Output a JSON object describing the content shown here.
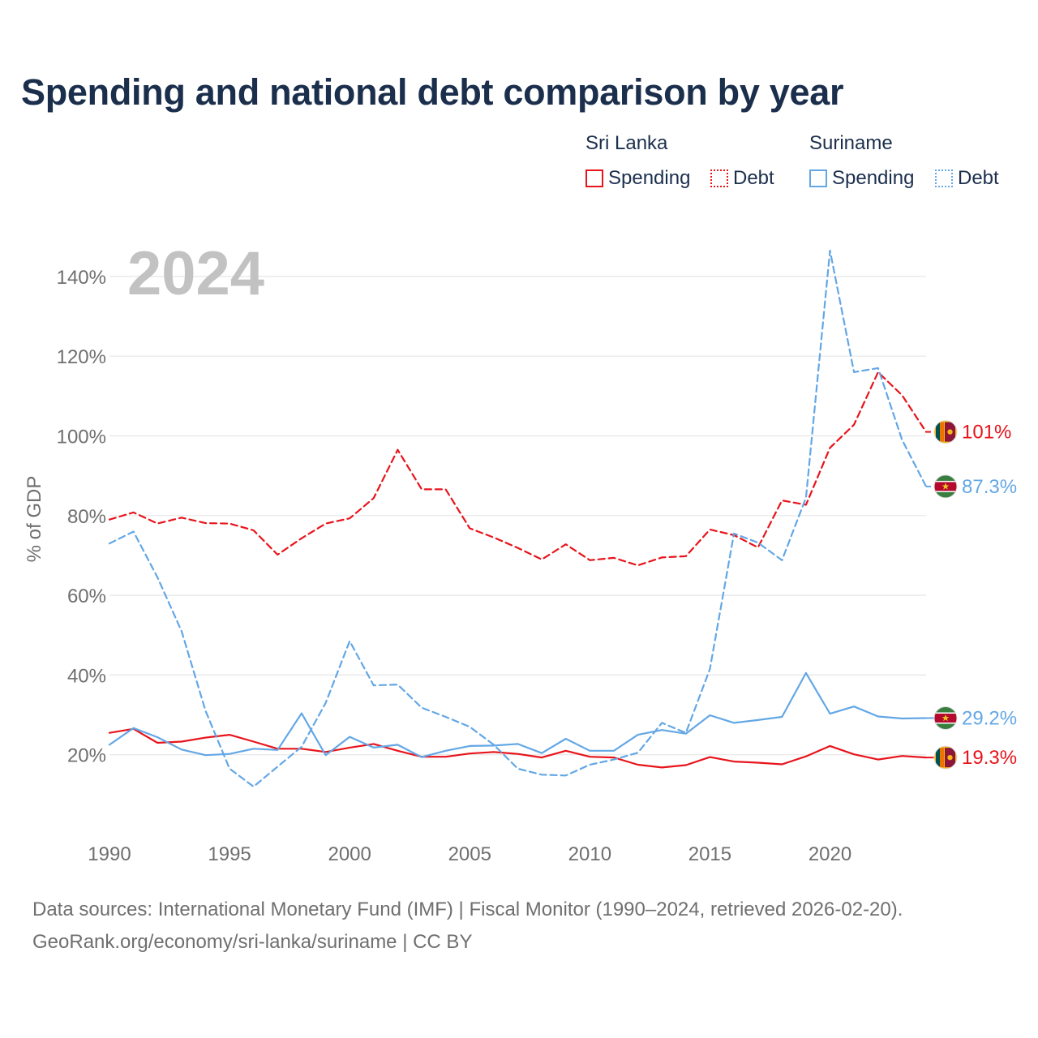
{
  "title": "Spending and national debt comparison by year",
  "legend": {
    "groups": [
      {
        "name": "Sri Lanka",
        "items": [
          "Spending",
          "Debt"
        ]
      },
      {
        "name": "Suriname",
        "items": [
          "Spending",
          "Debt"
        ]
      }
    ]
  },
  "year_label": "2024",
  "footer": {
    "source": "Data sources: International Monetary Fund (IMF) | Fiscal Monitor (1990–2024, retrieved 2026-02-20).",
    "credit": "GeoRank.org/economy/sri-lanka/suriname | CC BY"
  },
  "colors": {
    "sri_lanka": "#e8141b",
    "suriname": "#63a7e5",
    "grid": "#e6e6e6",
    "axis_text": "#6f6f6f"
  },
  "chart_data": {
    "type": "line",
    "ylabel": "% of GDP",
    "xlabel": "",
    "xlim": [
      1990,
      2024
    ],
    "ylim": [
      0,
      150
    ],
    "x_ticks": [
      1990,
      1995,
      2000,
      2005,
      2010,
      2015,
      2020
    ],
    "y_ticks": [
      20,
      40,
      60,
      80,
      100,
      120,
      140
    ],
    "y_tick_labels": [
      "20%",
      "40%",
      "60%",
      "80%",
      "100%",
      "120%",
      "140%"
    ],
    "x": [
      1990,
      1991,
      1992,
      1993,
      1994,
      1995,
      1996,
      1997,
      1998,
      1999,
      2000,
      2001,
      2002,
      2003,
      2004,
      2005,
      2006,
      2007,
      2008,
      2009,
      2010,
      2011,
      2012,
      2013,
      2014,
      2015,
      2016,
      2017,
      2018,
      2019,
      2020,
      2021,
      2022,
      2023,
      2024
    ],
    "series": [
      {
        "name": "Sri Lanka Spending",
        "country": "sri_lanka",
        "style": "solid",
        "end_label": "19.3%",
        "values": [
          25.5,
          26.5,
          23,
          23.3,
          24.3,
          25,
          23.3,
          21.5,
          21.5,
          20.7,
          21.8,
          22.7,
          21,
          19.5,
          19.5,
          20.3,
          20.7,
          20.2,
          19.3,
          21,
          19.5,
          19.3,
          17.5,
          16.8,
          17.4,
          19.4,
          18.3,
          18,
          17.6,
          19.6,
          22.2,
          20.1,
          18.8,
          19.7,
          19.3
        ]
      },
      {
        "name": "Sri Lanka Debt",
        "country": "sri_lanka",
        "style": "dashed",
        "end_label": "101%",
        "values": [
          79,
          80.8,
          78,
          79.5,
          78.1,
          78,
          76.3,
          70.2,
          74.3,
          78,
          79.3,
          84.4,
          96.5,
          86.6,
          86.6,
          76.8,
          74.5,
          71.9,
          69,
          72.8,
          68.8,
          69.4,
          67.5,
          69.5,
          69.8,
          76.5,
          75.1,
          72,
          83.8,
          82.7,
          97,
          102.8,
          116,
          110.2,
          101
        ]
      },
      {
        "name": "Suriname Spending",
        "country": "suriname",
        "style": "solid",
        "end_label": "29.2%",
        "values": [
          22.5,
          26.7,
          24.4,
          21.3,
          19.9,
          20.2,
          21.5,
          21.2,
          30.4,
          19.9,
          24.5,
          21.8,
          22.5,
          19.4,
          21,
          22.2,
          22.3,
          22.7,
          20.4,
          24,
          21,
          21,
          25,
          26.2,
          25.3,
          29.9,
          28,
          28.7,
          29.5,
          40.5,
          30.3,
          32.1,
          29.6,
          29.1,
          29.2
        ]
      },
      {
        "name": "Suriname Debt",
        "country": "suriname",
        "style": "dashed",
        "end_label": "87.3%",
        "values": [
          73,
          76,
          64.5,
          51,
          31,
          16.5,
          12,
          17,
          22,
          33,
          48.5,
          37.4,
          37.6,
          31.8,
          29.5,
          27,
          22.5,
          16.5,
          15,
          14.8,
          17.5,
          18.8,
          20.5,
          28,
          25.5,
          41.5,
          75.5,
          73.2,
          68.8,
          84.5,
          146.5,
          116,
          117,
          99,
          87.3
        ]
      }
    ]
  }
}
